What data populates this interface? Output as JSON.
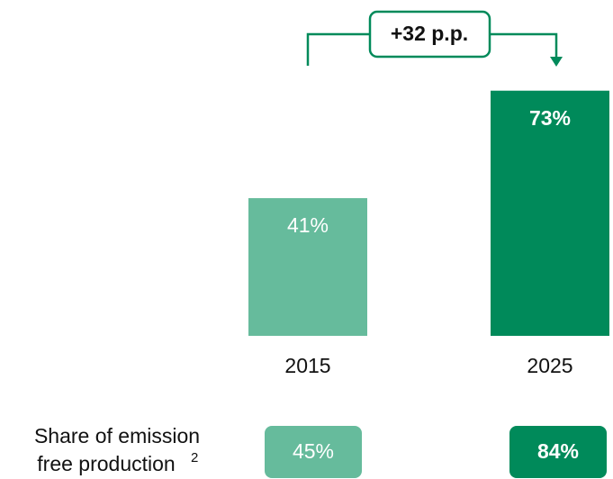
{
  "chart_data": {
    "type": "bar",
    "categories": [
      "2015",
      "2025"
    ],
    "values": [
      41,
      73
    ],
    "value_labels": [
      "41%",
      "73%"
    ],
    "colors": [
      "#66bb9c",
      "#008a5a"
    ],
    "ylim": [
      0,
      100
    ],
    "annotation": "+32 p.p.",
    "emission_free": {
      "label_lines": [
        "Share of emission",
        "free production"
      ],
      "superscript": "2",
      "values": [
        45,
        84
      ],
      "value_labels": [
        "45%",
        "84%"
      ]
    }
  }
}
